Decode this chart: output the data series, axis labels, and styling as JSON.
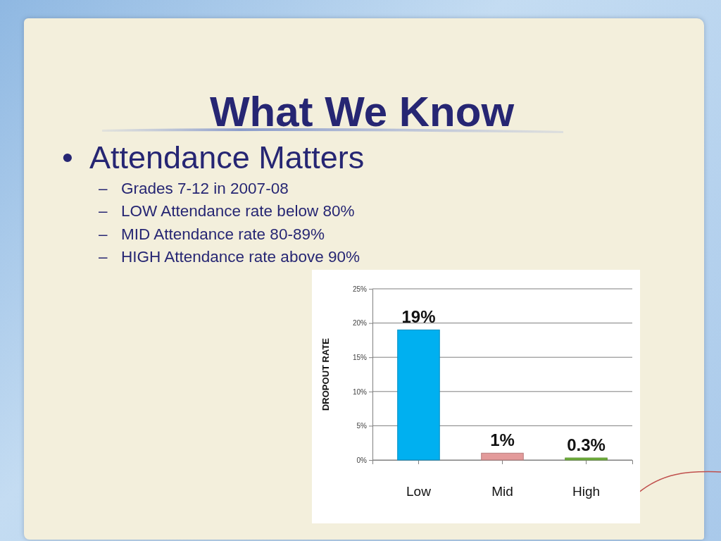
{
  "chart_data": {
    "type": "bar",
    "title": "What We Know",
    "subtitle": "• Attendance Matters",
    "annotations": [
      "– Grades 7-12 in 2007-08",
      "– LOW Attendance rate below 80%",
      "– MID Attendance rate 80-89%",
      "– HIGH Attendance rate above 90%"
    ],
    "ylabel": "DROPOUT RATE",
    "categories": [
      "Low",
      "Mid",
      "High"
    ],
    "values": [
      19,
      1,
      0.3
    ],
    "colors": [
      "#00b0f0",
      "#e39a9a",
      "#72b33c"
    ],
    "value_labels": [
      "19%",
      "1%",
      "0.3%"
    ],
    "ylim": [
      0,
      25
    ],
    "yticks": [
      {
        "value": 0,
        "label": "0%"
      },
      {
        "value": 5,
        "label": "5%"
      },
      {
        "value": 10,
        "label": "10%"
      },
      {
        "value": 15,
        "label": "15%"
      },
      {
        "value": 20,
        "label": "20%"
      },
      {
        "value": 25,
        "label": "25%"
      }
    ],
    "grid": "y"
  }
}
